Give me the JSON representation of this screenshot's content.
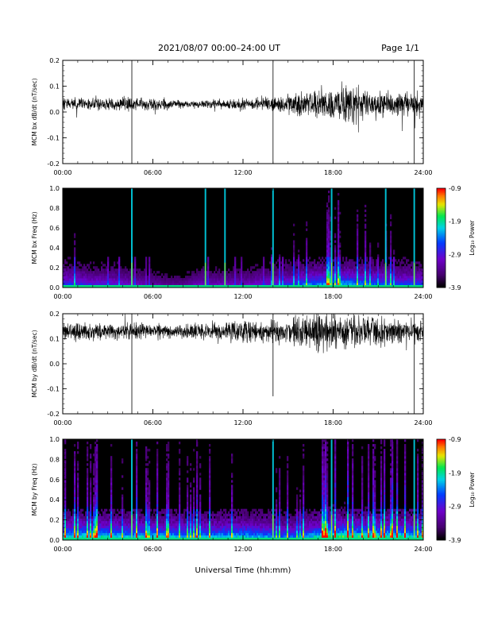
{
  "header": {
    "title": "2021/08/07  00:00–24:00 UT",
    "page": "Page 1/1"
  },
  "xaxis": {
    "label": "Universal Time (hh:mm)",
    "range_hours": [
      0,
      24
    ],
    "ticks": [
      "00:00",
      "06:00",
      "12:00",
      "18:00",
      "24:00"
    ]
  },
  "colorbar": {
    "label": "Log₁₀ Power",
    "ticks": [
      "-0.9",
      "-1.9",
      "-2.9",
      "-3.9"
    ],
    "range": [
      -3.9,
      -0.9
    ]
  },
  "chart_data": [
    {
      "type": "line",
      "ylabel": "MCM bx dB/dt (nT/sec)",
      "ylim": [
        -0.2,
        0.2
      ],
      "yticks": [
        "0.2",
        "0.1",
        "0.0",
        "-0.1",
        "-0.2"
      ],
      "baseline": 0.03,
      "noise_by_hour": [
        0.01,
        0.01,
        0.01,
        0.01,
        0.012,
        0.012,
        0.01,
        0.008,
        0.006,
        0.006,
        0.007,
        0.008,
        0.01,
        0.01,
        0.012,
        0.015,
        0.022,
        0.025,
        0.03,
        0.03,
        0.026,
        0.022,
        0.02,
        0.018,
        0.018
      ],
      "spikes": [
        {
          "t": 4.6,
          "y": -0.2
        },
        {
          "t": 14.0,
          "y": -0.2
        },
        {
          "t": 23.4,
          "y": -0.2
        }
      ]
    },
    {
      "type": "heatmap",
      "ylabel": "MCM bx Freq (Hz)",
      "ylim": [
        0.0,
        1.0
      ],
      "yticks": [
        "1.0",
        "0.8",
        "0.6",
        "0.4",
        "0.2",
        "0.0"
      ],
      "bright_lines_hours": [
        4.6,
        9.5,
        10.8,
        14.0,
        17.9,
        21.5,
        23.4
      ],
      "activity_by_hour": [
        0.5,
        0.45,
        0.4,
        0.4,
        0.35,
        0.3,
        0.25,
        0.2,
        0.2,
        0.3,
        0.3,
        0.3,
        0.3,
        0.35,
        0.4,
        0.45,
        0.55,
        0.6,
        0.65,
        0.65,
        0.6,
        0.55,
        0.5,
        0.5,
        0.5
      ]
    },
    {
      "type": "line",
      "ylabel": "MCM by dB/dt (nT/sec)",
      "ylim": [
        -0.2,
        0.2
      ],
      "yticks": [
        "0.2",
        "0.1",
        "0.0",
        "-0.1",
        "-0.2"
      ],
      "baseline": 0.13,
      "noise_by_hour": [
        0.015,
        0.015,
        0.015,
        0.015,
        0.015,
        0.015,
        0.012,
        0.012,
        0.012,
        0.015,
        0.015,
        0.018,
        0.02,
        0.02,
        0.02,
        0.022,
        0.028,
        0.035,
        0.035,
        0.032,
        0.028,
        0.025,
        0.022,
        0.02,
        0.02
      ],
      "spikes": [
        {
          "t": 4.6,
          "y": -0.2
        },
        {
          "t": 14.0,
          "y": -0.13
        },
        {
          "t": 23.4,
          "y": -0.2
        }
      ]
    },
    {
      "type": "heatmap",
      "ylabel": "MCM by Freq (Hz)",
      "ylim": [
        0.0,
        1.0
      ],
      "yticks": [
        "1.0",
        "0.8",
        "0.6",
        "0.4",
        "0.2",
        "0.0"
      ],
      "bright_lines_hours": [
        4.6,
        14.0,
        17.9,
        23.4
      ],
      "activity_by_hour": [
        0.7,
        0.75,
        0.75,
        0.75,
        0.7,
        0.7,
        0.7,
        0.7,
        0.65,
        0.65,
        0.65,
        0.7,
        0.7,
        0.65,
        0.6,
        0.55,
        0.6,
        0.75,
        0.85,
        0.85,
        0.8,
        0.8,
        0.8,
        0.75,
        0.75
      ]
    }
  ]
}
